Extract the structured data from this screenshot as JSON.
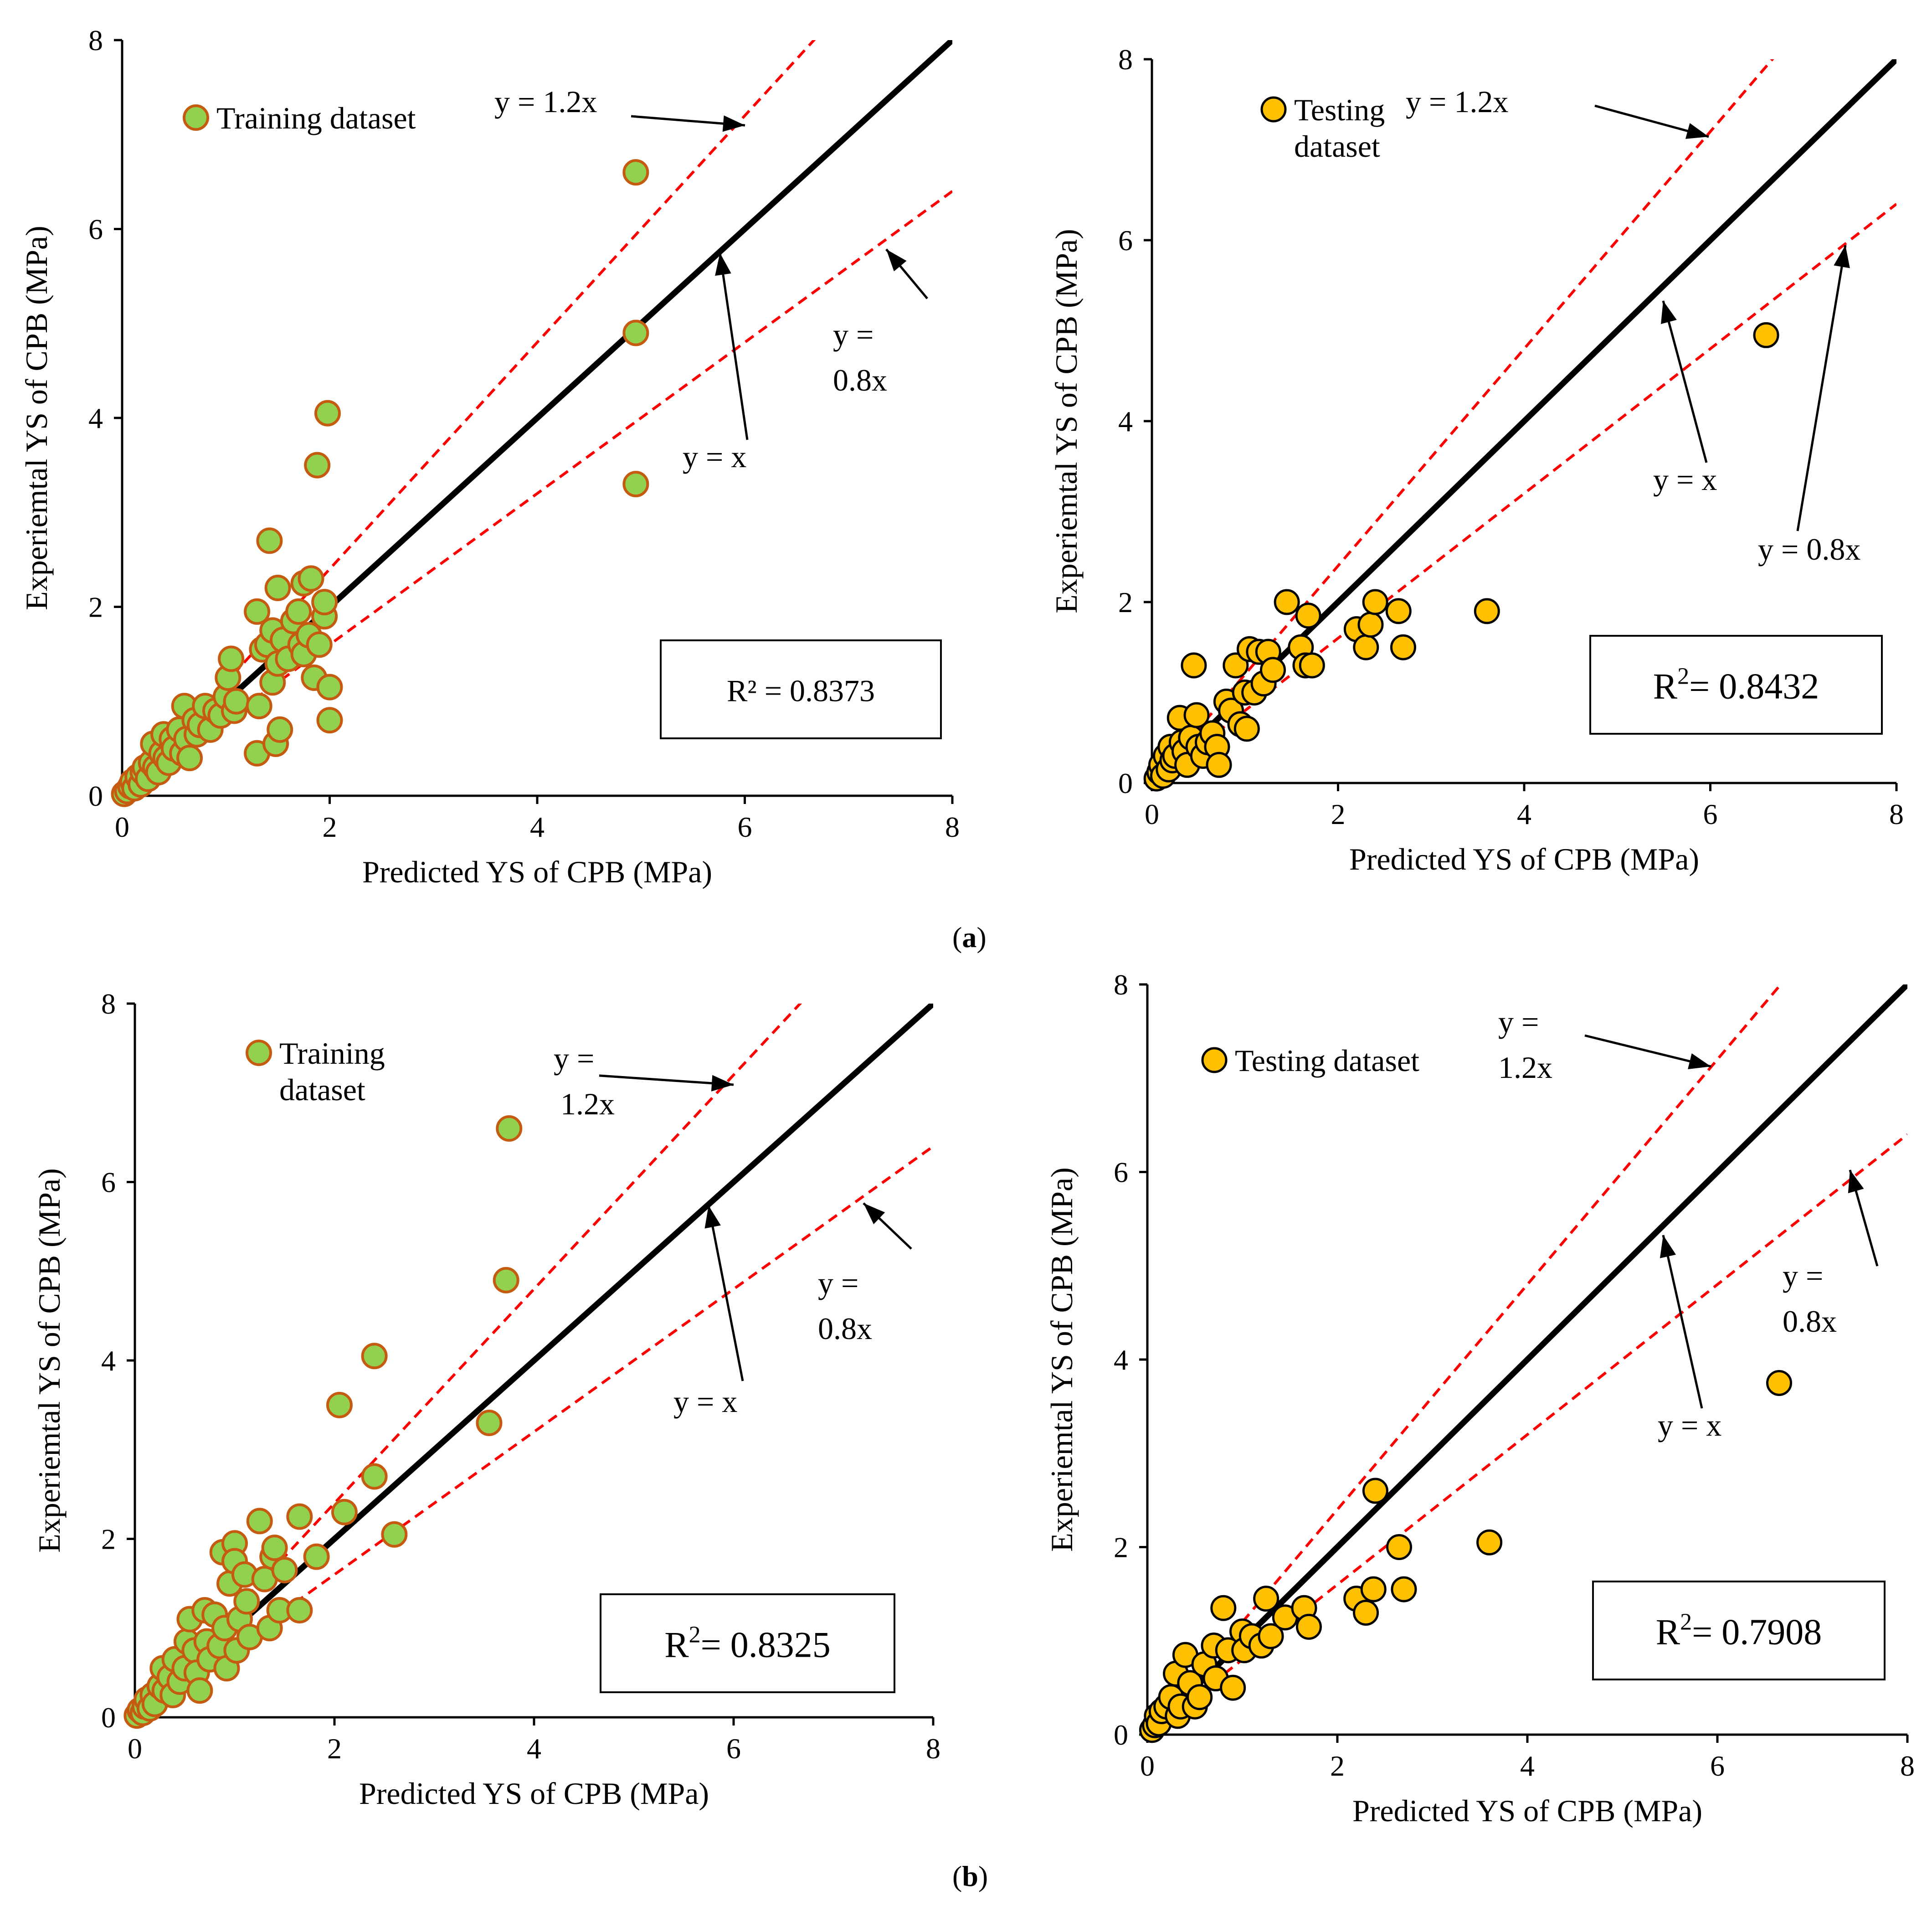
{
  "figure": {
    "caption_a": "a",
    "caption_b": "b",
    "colors": {
      "ideal_line": "#000000",
      "bound_line": "#ff0000",
      "training_fill": "#92d050",
      "training_stroke": "#c55a11",
      "testing_fill": "#ffc000",
      "testing_stroke": "#000000",
      "axis": "#000000"
    }
  },
  "chart_data": [
    {
      "type": "scatter",
      "panel": "a-training",
      "xlabel": "Predicted YS of CPB (MPa)",
      "ylabel": "Experiemtal YS of CPB (MPa)",
      "xlim": [
        0,
        8
      ],
      "ylim": [
        0,
        8
      ],
      "xticks": [
        "0",
        "2",
        "4",
        "6",
        "8"
      ],
      "yticks": [
        "0",
        "2",
        "4",
        "6",
        "8"
      ],
      "legend": "Training dataset",
      "r2_text": "R² = 0.8373",
      "line_labels": {
        "upper": "y = 1.2x",
        "ideal": "y = x",
        "lower": "y = 0.8x"
      },
      "series": [
        {
          "name": "Training dataset",
          "style": "training",
          "points": [
            [
              0.02,
              0.02
            ],
            [
              0.05,
              0.05
            ],
            [
              0.08,
              0.1
            ],
            [
              0.1,
              0.15
            ],
            [
              0.12,
              0.08
            ],
            [
              0.15,
              0.2
            ],
            [
              0.18,
              0.12
            ],
            [
              0.2,
              0.25
            ],
            [
              0.22,
              0.3
            ],
            [
              0.25,
              0.18
            ],
            [
              0.28,
              0.35
            ],
            [
              0.3,
              0.55
            ],
            [
              0.32,
              0.3
            ],
            [
              0.35,
              0.25
            ],
            [
              0.38,
              0.45
            ],
            [
              0.4,
              0.65
            ],
            [
              0.42,
              0.4
            ],
            [
              0.45,
              0.35
            ],
            [
              0.48,
              0.6
            ],
            [
              0.5,
              0.5
            ],
            [
              0.55,
              0.7
            ],
            [
              0.58,
              0.45
            ],
            [
              0.6,
              0.95
            ],
            [
              0.62,
              0.6
            ],
            [
              0.65,
              0.4
            ],
            [
              0.7,
              0.8
            ],
            [
              0.72,
              0.65
            ],
            [
              0.75,
              0.75
            ],
            [
              0.8,
              0.95
            ],
            [
              0.85,
              0.7
            ],
            [
              0.9,
              0.9
            ],
            [
              0.95,
              0.85
            ],
            [
              1.0,
              1.05
            ],
            [
              1.02,
              1.25
            ],
            [
              1.05,
              1.45
            ],
            [
              1.08,
              0.9
            ],
            [
              1.1,
              1.0
            ],
            [
              1.3,
              0.45
            ],
            [
              1.3,
              1.95
            ],
            [
              1.32,
              0.95
            ],
            [
              1.35,
              1.55
            ],
            [
              1.4,
              1.6
            ],
            [
              1.42,
              2.7
            ],
            [
              1.45,
              1.2
            ],
            [
              1.45,
              1.75
            ],
            [
              1.48,
              0.55
            ],
            [
              1.5,
              1.4
            ],
            [
              1.5,
              2.2
            ],
            [
              1.52,
              0.7
            ],
            [
              1.55,
              1.65
            ],
            [
              1.6,
              1.45
            ],
            [
              1.65,
              1.85
            ],
            [
              1.7,
              1.95
            ],
            [
              1.72,
              1.6
            ],
            [
              1.75,
              2.25
            ],
            [
              1.75,
              1.5
            ],
            [
              1.8,
              1.7
            ],
            [
              1.82,
              2.3
            ],
            [
              1.85,
              1.25
            ],
            [
              1.88,
              3.5
            ],
            [
              1.9,
              1.6
            ],
            [
              1.95,
              1.9
            ],
            [
              1.95,
              2.05
            ],
            [
              1.98,
              4.05
            ],
            [
              2.0,
              1.15
            ],
            [
              2.0,
              0.8
            ],
            [
              4.95,
              6.6
            ],
            [
              4.95,
              4.9
            ],
            [
              4.95,
              3.3
            ]
          ]
        }
      ]
    },
    {
      "type": "scatter",
      "panel": "a-testing",
      "xlabel": "Predicted YS of CPB (MPa)",
      "ylabel": "Experiemtal YS of CPB (MPa)",
      "xlim": [
        0,
        8
      ],
      "ylim": [
        0,
        8
      ],
      "xticks": [
        "0",
        "2",
        "4",
        "6",
        "8"
      ],
      "yticks": [
        "0",
        "2",
        "4",
        "6",
        "8"
      ],
      "legend_line1": "Testing",
      "legend_line2": "dataset",
      "r2_prefix": "R",
      "r2_sup": "2",
      "r2_value": "= 0.8432",
      "line_labels": {
        "upper": "y = 1.2x",
        "ideal": "y = x",
        "lower": "y = 0.8x"
      },
      "series": [
        {
          "name": "Testing dataset",
          "style": "testing",
          "points": [
            [
              0.05,
              0.05
            ],
            [
              0.08,
              0.12
            ],
            [
              0.1,
              0.2
            ],
            [
              0.12,
              0.08
            ],
            [
              0.15,
              0.3
            ],
            [
              0.18,
              0.15
            ],
            [
              0.2,
              0.4
            ],
            [
              0.22,
              0.25
            ],
            [
              0.25,
              0.3
            ],
            [
              0.3,
              0.72
            ],
            [
              0.32,
              0.45
            ],
            [
              0.35,
              0.35
            ],
            [
              0.38,
              0.2
            ],
            [
              0.42,
              0.5
            ],
            [
              0.45,
              1.3
            ],
            [
              0.48,
              0.75
            ],
            [
              0.5,
              0.4
            ],
            [
              0.55,
              0.3
            ],
            [
              0.6,
              0.45
            ],
            [
              0.65,
              0.55
            ],
            [
              0.7,
              0.4
            ],
            [
              0.72,
              0.2
            ],
            [
              0.8,
              0.9
            ],
            [
              0.85,
              0.8
            ],
            [
              0.9,
              1.3
            ],
            [
              0.95,
              0.65
            ],
            [
              1.0,
              1.0
            ],
            [
              1.02,
              0.6
            ],
            [
              1.05,
              1.48
            ],
            [
              1.1,
              1.0
            ],
            [
              1.15,
              1.45
            ],
            [
              1.2,
              1.1
            ],
            [
              1.25,
              1.45
            ],
            [
              1.3,
              1.25
            ],
            [
              1.45,
              2.0
            ],
            [
              1.6,
              1.5
            ],
            [
              1.65,
              1.3
            ],
            [
              1.68,
              1.85
            ],
            [
              1.72,
              1.3
            ],
            [
              2.2,
              1.7
            ],
            [
              2.3,
              1.5
            ],
            [
              2.35,
              1.75
            ],
            [
              2.4,
              2.0
            ],
            [
              2.65,
              1.9
            ],
            [
              2.7,
              1.5
            ],
            [
              3.6,
              1.9
            ],
            [
              6.6,
              4.95
            ]
          ]
        }
      ]
    },
    {
      "type": "scatter",
      "panel": "b-training",
      "xlabel": "Predicted YS of CPB (MPa)",
      "ylabel": "Experiemtal YS of CPB (MPa)",
      "xlim": [
        0,
        8
      ],
      "ylim": [
        0,
        8
      ],
      "xticks": [
        "0",
        "2",
        "4",
        "6",
        "8"
      ],
      "yticks": [
        "0",
        "2",
        "4",
        "6",
        "8"
      ],
      "legend_line1": "Training",
      "legend_line2": "dataset",
      "r2_prefix": "R",
      "r2_sup": "2",
      "r2_value": "= 0.8325",
      "line_labels": {
        "upper": "y = 1.2x",
        "ideal": "y = x",
        "lower": "y = 0.8x"
      },
      "series": [
        {
          "name": "Training dataset",
          "style": "training",
          "points": [
            [
              0.02,
              0.02
            ],
            [
              0.05,
              0.08
            ],
            [
              0.08,
              0.05
            ],
            [
              0.1,
              0.12
            ],
            [
              0.12,
              0.2
            ],
            [
              0.15,
              0.1
            ],
            [
              0.18,
              0.25
            ],
            [
              0.2,
              0.15
            ],
            [
              0.25,
              0.35
            ],
            [
              0.28,
              0.55
            ],
            [
              0.3,
              0.3
            ],
            [
              0.35,
              0.45
            ],
            [
              0.38,
              0.25
            ],
            [
              0.4,
              0.65
            ],
            [
              0.45,
              0.4
            ],
            [
              0.5,
              0.55
            ],
            [
              0.52,
              0.85
            ],
            [
              0.55,
              1.1
            ],
            [
              0.6,
              0.75
            ],
            [
              0.62,
              0.5
            ],
            [
              0.65,
              0.3
            ],
            [
              0.7,
              1.2
            ],
            [
              0.72,
              0.85
            ],
            [
              0.75,
              0.65
            ],
            [
              0.8,
              1.15
            ],
            [
              0.85,
              0.8
            ],
            [
              0.88,
              1.85
            ],
            [
              0.9,
              1.0
            ],
            [
              0.92,
              0.55
            ],
            [
              0.95,
              1.5
            ],
            [
              1.0,
              1.95
            ],
            [
              1.0,
              1.75
            ],
            [
              1.02,
              0.75
            ],
            [
              1.05,
              1.1
            ],
            [
              1.1,
              1.6
            ],
            [
              1.12,
              1.3
            ],
            [
              1.15,
              0.9
            ],
            [
              1.25,
              2.2
            ],
            [
              1.3,
              1.55
            ],
            [
              1.35,
              1.0
            ],
            [
              1.38,
              1.8
            ],
            [
              1.4,
              1.9
            ],
            [
              1.45,
              1.2
            ],
            [
              1.5,
              1.65
            ],
            [
              1.65,
              2.25
            ],
            [
              1.65,
              1.2
            ],
            [
              1.82,
              1.8
            ],
            [
              2.05,
              3.5
            ],
            [
              2.1,
              2.3
            ],
            [
              2.4,
              4.05
            ],
            [
              2.4,
              2.7
            ],
            [
              2.6,
              2.05
            ],
            [
              3.55,
              3.3
            ],
            [
              3.72,
              4.9
            ],
            [
              3.75,
              6.6
            ]
          ]
        }
      ]
    },
    {
      "type": "scatter",
      "panel": "b-testing",
      "xlabel": "Predicted YS of CPB (MPa)",
      "ylabel": "Experiemtal YS of CPB (MPa)",
      "xlim": [
        0,
        8
      ],
      "ylim": [
        0,
        8
      ],
      "xticks": [
        "0",
        "2",
        "4",
        "6",
        "8"
      ],
      "yticks": [
        "0",
        "2",
        "4",
        "6",
        "8"
      ],
      "legend": "Testing dataset",
      "r2_prefix": "R",
      "r2_sup": "2",
      "r2_value": "= 0.7908",
      "line_labels": {
        "upper_line1": "y =",
        "upper_line2": "1.2x",
        "ideal": "y = x",
        "lower_line1": "y =",
        "lower_line2": "0.8x"
      },
      "series": [
        {
          "name": "Testing dataset",
          "style": "testing",
          "points": [
            [
              0.05,
              0.05
            ],
            [
              0.08,
              0.1
            ],
            [
              0.1,
              0.2
            ],
            [
              0.12,
              0.12
            ],
            [
              0.15,
              0.25
            ],
            [
              0.2,
              0.3
            ],
            [
              0.25,
              0.4
            ],
            [
              0.3,
              0.65
            ],
            [
              0.32,
              0.2
            ],
            [
              0.35,
              0.3
            ],
            [
              0.4,
              0.85
            ],
            [
              0.45,
              0.55
            ],
            [
              0.5,
              0.3
            ],
            [
              0.55,
              0.4
            ],
            [
              0.6,
              0.75
            ],
            [
              0.7,
              0.95
            ],
            [
              0.72,
              0.6
            ],
            [
              0.8,
              1.35
            ],
            [
              0.85,
              0.9
            ],
            [
              0.9,
              0.5
            ],
            [
              1.0,
              1.1
            ],
            [
              1.02,
              0.9
            ],
            [
              1.1,
              1.05
            ],
            [
              1.2,
              0.95
            ],
            [
              1.25,
              1.45
            ],
            [
              1.3,
              1.05
            ],
            [
              1.45,
              1.25
            ],
            [
              1.65,
              1.35
            ],
            [
              1.7,
              1.15
            ],
            [
              2.2,
              1.45
            ],
            [
              2.3,
              1.3
            ],
            [
              2.38,
              1.55
            ],
            [
              2.4,
              2.6
            ],
            [
              2.65,
              2.0
            ],
            [
              2.7,
              1.55
            ],
            [
              3.6,
              2.05
            ],
            [
              6.65,
              3.75
            ]
          ]
        }
      ]
    }
  ]
}
